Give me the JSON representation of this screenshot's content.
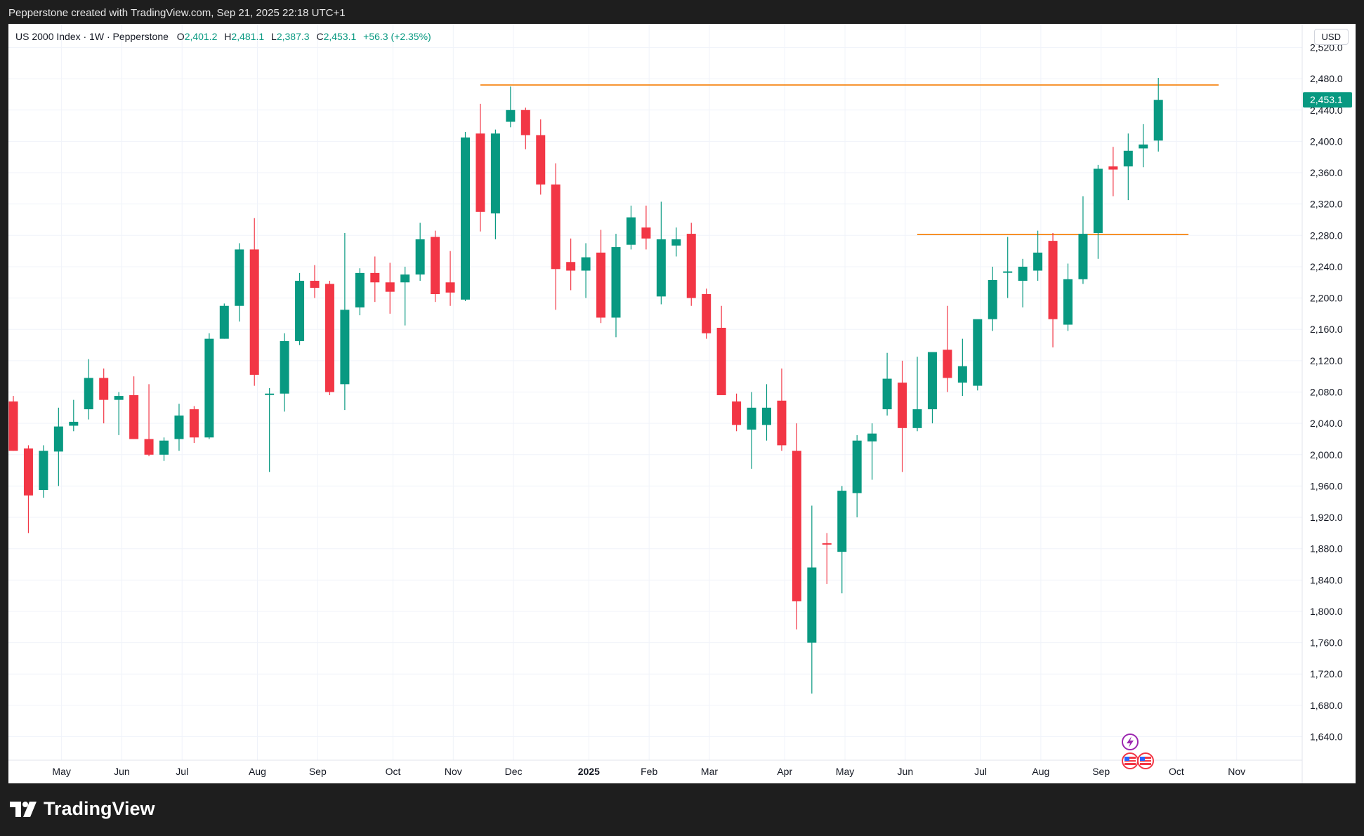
{
  "header": {
    "text": "Pepperstone created with TradingView.com, Sep 21, 2025 22:18 UTC+1"
  },
  "legend": {
    "symbol": "US 2000 Index · 1W · Pepperstone",
    "o_label": "O",
    "o": "2,401.2",
    "h_label": "H",
    "h": "2,481.1",
    "l_label": "L",
    "l": "2,387.3",
    "c_label": "C",
    "c": "2,453.1",
    "change": "+56.3 (+2.35%)"
  },
  "currency": "USD",
  "last_price_label": "2,453.1",
  "footer": {
    "brand": "TradingView"
  },
  "colors": {
    "up": "#089981",
    "down": "#f23645",
    "hline": "#f57c00",
    "event_icon": "#9c27b0"
  },
  "icons": [
    "lightning-event-icon",
    "us-flag-icon",
    "us-flag-icon"
  ],
  "chart_data": {
    "type": "candlestick",
    "interval": "1W",
    "ylim": [
      1610,
      2550
    ],
    "y_ticks": [
      1640,
      1680,
      1720,
      1760,
      1800,
      1840,
      1880,
      1920,
      1960,
      2000,
      2040,
      2080,
      2120,
      2160,
      2200,
      2240,
      2280,
      2320,
      2360,
      2400,
      2440,
      2480,
      2520
    ],
    "y_tick_labels": [
      "1,640.0",
      "1,680.0",
      "1,720.0",
      "1,760.0",
      "1,800.0",
      "1,840.0",
      "1,880.0",
      "1,920.0",
      "1,960.0",
      "2,000.0",
      "2,040.0",
      "2,080.0",
      "2,120.0",
      "2,160.0",
      "2,200.0",
      "2,240.0",
      "2,280.0",
      "2,320.0",
      "2,360.0",
      "2,400.0",
      "2,440.0",
      "2,480.0",
      "2,520.0"
    ],
    "x_labels": [
      {
        "label": "May",
        "week": 3.2,
        "bold": false
      },
      {
        "label": "Jun",
        "week": 7.2,
        "bold": false
      },
      {
        "label": "Jul",
        "week": 11.2,
        "bold": false
      },
      {
        "label": "Aug",
        "week": 16.2,
        "bold": false
      },
      {
        "label": "Sep",
        "week": 20.2,
        "bold": false
      },
      {
        "label": "Oct",
        "week": 25.2,
        "bold": false
      },
      {
        "label": "Nov",
        "week": 29.2,
        "bold": false
      },
      {
        "label": "Dec",
        "week": 33.2,
        "bold": false
      },
      {
        "label": "2025",
        "week": 38.2,
        "bold": true
      },
      {
        "label": "Feb",
        "week": 42.2,
        "bold": false
      },
      {
        "label": "Mar",
        "week": 46.2,
        "bold": false
      },
      {
        "label": "Apr",
        "week": 51.2,
        "bold": false
      },
      {
        "label": "May",
        "week": 55.2,
        "bold": false
      },
      {
        "label": "Jun",
        "week": 59.2,
        "bold": false
      },
      {
        "label": "Jul",
        "week": 64.2,
        "bold": false
      },
      {
        "label": "Aug",
        "week": 68.2,
        "bold": false
      },
      {
        "label": "Sep",
        "week": 72.2,
        "bold": false
      },
      {
        "label": "Oct",
        "week": 77.2,
        "bold": false
      },
      {
        "label": "Nov",
        "week": 81.2,
        "bold": false
      }
    ],
    "horizontal_lines": [
      {
        "price": 2472,
        "from_week": 31,
        "to_week": 80
      },
      {
        "price": 2281,
        "from_week": 60,
        "to_week": 78
      }
    ],
    "candles": [
      [
        2068,
        2075,
        2005,
        2005
      ],
      [
        2008,
        2012,
        1900,
        1948
      ],
      [
        1955,
        2012,
        1945,
        2005
      ],
      [
        2004,
        2060,
        1960,
        2036
      ],
      [
        2037,
        2070,
        2030,
        2042
      ],
      [
        2058,
        2122,
        2045,
        2098
      ],
      [
        2098,
        2110,
        2040,
        2070
      ],
      [
        2070,
        2080,
        2025,
        2075
      ],
      [
        2076,
        2100,
        2020,
        2020
      ],
      [
        2020,
        2090,
        1998,
        2000
      ],
      [
        2000,
        2022,
        1992,
        2018
      ],
      [
        2020,
        2065,
        2005,
        2050
      ],
      [
        2058,
        2062,
        2015,
        2022
      ],
      [
        2022,
        2155,
        2020,
        2148
      ],
      [
        2148,
        2193,
        2148,
        2190
      ],
      [
        2190,
        2270,
        2170,
        2262
      ],
      [
        2262,
        2302,
        2088,
        2102
      ],
      [
        2078,
        2085,
        1978,
        2078
      ],
      [
        2078,
        2155,
        2055,
        2145
      ],
      [
        2145,
        2232,
        2140,
        2222
      ],
      [
        2222,
        2242,
        2200,
        2213
      ],
      [
        2218,
        2222,
        2076,
        2080
      ],
      [
        2090,
        2283,
        2057,
        2185
      ],
      [
        2188,
        2238,
        2178,
        2232
      ],
      [
        2232,
        2253,
        2195,
        2220
      ],
      [
        2220,
        2245,
        2180,
        2208
      ],
      [
        2220,
        2240,
        2165,
        2230
      ],
      [
        2230,
        2296,
        2222,
        2275
      ],
      [
        2278,
        2286,
        2195,
        2205
      ],
      [
        2220,
        2260,
        2190,
        2207
      ],
      [
        2198,
        2412,
        2196,
        2405
      ],
      [
        2410,
        2448,
        2285,
        2310
      ],
      [
        2308,
        2415,
        2275,
        2410
      ],
      [
        2425,
        2470,
        2418,
        2440
      ],
      [
        2440,
        2443,
        2390,
        2408
      ],
      [
        2408,
        2428,
        2332,
        2345
      ],
      [
        2345,
        2372,
        2185,
        2237
      ],
      [
        2246,
        2276,
        2210,
        2235
      ],
      [
        2235,
        2270,
        2200,
        2252
      ],
      [
        2258,
        2287,
        2168,
        2175
      ],
      [
        2175,
        2282,
        2150,
        2265
      ],
      [
        2268,
        2318,
        2262,
        2303
      ],
      [
        2290,
        2318,
        2262,
        2276
      ],
      [
        2202,
        2323,
        2192,
        2275
      ],
      [
        2267,
        2290,
        2253,
        2275
      ],
      [
        2282,
        2296,
        2190,
        2200
      ],
      [
        2205,
        2212,
        2148,
        2155
      ],
      [
        2162,
        2190,
        2080,
        2076
      ],
      [
        2068,
        2078,
        2030,
        2038
      ],
      [
        2032,
        2080,
        1982,
        2060
      ],
      [
        2038,
        2090,
        2018,
        2060
      ],
      [
        2069,
        2110,
        2005,
        2012
      ],
      [
        2005,
        2040,
        1777,
        1813
      ],
      [
        1760,
        1935,
        1695,
        1856
      ],
      [
        1887,
        1900,
        1835,
        1886
      ],
      [
        1876,
        1960,
        1823,
        1954
      ],
      [
        1951,
        2025,
        1920,
        2018
      ],
      [
        2017,
        2040,
        1968,
        2027
      ],
      [
        2058,
        2130,
        2050,
        2097
      ],
      [
        2092,
        2120,
        1978,
        2034
      ],
      [
        2034,
        2125,
        2030,
        2058
      ],
      [
        2058,
        2130,
        2040,
        2131
      ],
      [
        2134,
        2190,
        2080,
        2098
      ],
      [
        2092,
        2148,
        2075,
        2113
      ],
      [
        2088,
        2170,
        2082,
        2173
      ],
      [
        2173,
        2240,
        2158,
        2223
      ],
      [
        2233,
        2278,
        2200,
        2234
      ],
      [
        2222,
        2250,
        2188,
        2240
      ],
      [
        2235,
        2286,
        2222,
        2258
      ],
      [
        2273,
        2283,
        2137,
        2173
      ],
      [
        2166,
        2244,
        2158,
        2224
      ],
      [
        2224,
        2330,
        2218,
        2282
      ],
      [
        2283,
        2370,
        2250,
        2365
      ],
      [
        2368,
        2393,
        2330,
        2364
      ],
      [
        2368,
        2410,
        2325,
        2388
      ],
      [
        2391,
        2422,
        2367,
        2396
      ],
      [
        2401,
        2481,
        2387,
        2453
      ]
    ]
  }
}
